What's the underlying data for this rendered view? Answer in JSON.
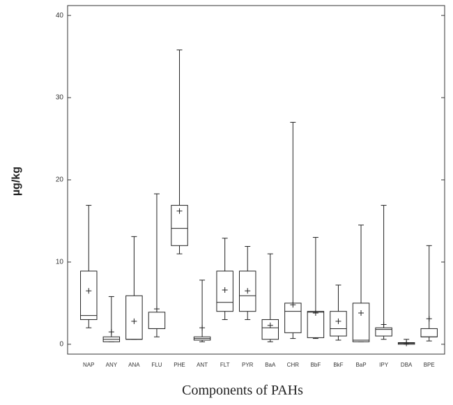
{
  "chart_data": {
    "type": "box",
    "x_label": "Components of PAHs",
    "y_label": "µg/kg",
    "categories": [
      "NAP",
      "ANY",
      "ANA",
      "FLU",
      "PHE",
      "ANT",
      "FLT",
      "PYR",
      "BaA",
      "CHR",
      "BbF",
      "BkF",
      "BaP",
      "IPY",
      "DBA",
      "BPE"
    ],
    "min": [
      2,
      0.3,
      0.6,
      0.9,
      11,
      0.3,
      3,
      3,
      0.3,
      0.7,
      0.7,
      0.5,
      0.3,
      0.6,
      0,
      0.4
    ],
    "q1": [
      3,
      0.3,
      0.6,
      1.9,
      12,
      0.5,
      4,
      4,
      0.6,
      1.4,
      0.8,
      1,
      0.3,
      1,
      0,
      0.9
    ],
    "median": [
      3.5,
      0.6,
      0.6,
      1.9,
      14.1,
      0.7,
      5.1,
      5.9,
      2,
      4,
      3.9,
      1.9,
      0.5,
      1.8,
      0.1,
      0.9
    ],
    "q3": [
      8.9,
      0.9,
      5.9,
      3.9,
      16.9,
      0.9,
      8.9,
      8.9,
      3,
      5,
      4,
      4,
      5,
      2,
      0.2,
      1.9
    ],
    "max": [
      16.9,
      5.8,
      13.1,
      18.3,
      35.8,
      7.8,
      12.9,
      11.9,
      11,
      27,
      13,
      7.2,
      14.5,
      16.9,
      0.6,
      12
    ],
    "mean": [
      6.5,
      1.5,
      2.8,
      4.3,
      16.2,
      2,
      6.6,
      6.5,
      2.3,
      4.8,
      3.8,
      2.8,
      3.8,
      2.4,
      0.1,
      3.1
    ],
    "ylim": [
      -1.2,
      41.2
    ],
    "yticks": [
      0,
      10,
      20,
      30,
      40
    ],
    "color": "#222222"
  }
}
